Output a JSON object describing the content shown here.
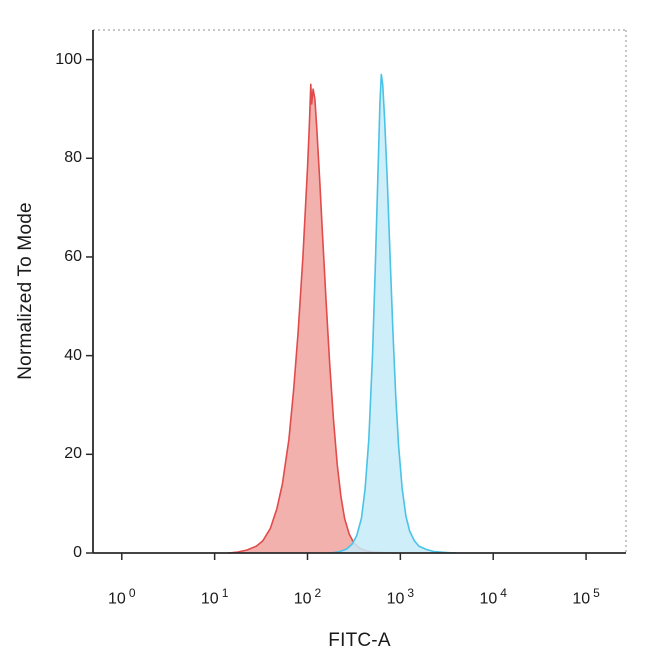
{
  "chart": {
    "xlabel": "FITC-A",
    "ylabel": "Normalized To Mode"
  },
  "chart_data": {
    "type": "area",
    "subtype": "flow-cytometry-histogram-overlay",
    "title": "",
    "xlabel": "FITC-A",
    "ylabel": "Normalized To Mode",
    "x_scale": "log10",
    "x_domain_log10": [
      -0.31,
      5.43
    ],
    "ylim": [
      0,
      100
    ],
    "y_domain": [
      0,
      106
    ],
    "grid": false,
    "legend": "none",
    "panel_border_style": "dashed-top-right",
    "panel_border_color": "#8f8f8f",
    "axis_color": "#2a2a2a",
    "x_ticks": [
      {
        "base": "10",
        "exp": "0",
        "log10": 0
      },
      {
        "base": "10",
        "exp": "1",
        "log10": 1
      },
      {
        "base": "10",
        "exp": "2",
        "log10": 2
      },
      {
        "base": "10",
        "exp": "3",
        "log10": 3
      },
      {
        "base": "10",
        "exp": "4",
        "log10": 4
      },
      {
        "base": "10",
        "exp": "5",
        "log10": 5
      }
    ],
    "y_ticks": [
      {
        "label": "0",
        "value": 0
      },
      {
        "label": "20",
        "value": 20
      },
      {
        "label": "40",
        "value": 40
      },
      {
        "label": "60",
        "value": 60
      },
      {
        "label": "80",
        "value": 80
      },
      {
        "label": "100",
        "value": 100
      }
    ],
    "series": [
      {
        "name": "red-population",
        "peak_log10_x": 2.04,
        "peak_y": 95,
        "stroke": "#e14b4b",
        "fill": "#ef9d99",
        "fill_opacity": 0.8,
        "stroke_width": 1.6,
        "points": [
          [
            1.15,
            0
          ],
          [
            1.25,
            0.2
          ],
          [
            1.35,
            0.6
          ],
          [
            1.45,
            1.4
          ],
          [
            1.52,
            2.5
          ],
          [
            1.6,
            5
          ],
          [
            1.67,
            9
          ],
          [
            1.73,
            14
          ],
          [
            1.8,
            23
          ],
          [
            1.85,
            33
          ],
          [
            1.9,
            45
          ],
          [
            1.95,
            60
          ],
          [
            2.0,
            78
          ],
          [
            2.02,
            87
          ],
          [
            2.035,
            95
          ],
          [
            2.045,
            91
          ],
          [
            2.06,
            94
          ],
          [
            2.08,
            92
          ],
          [
            2.1,
            86
          ],
          [
            2.13,
            76
          ],
          [
            2.16,
            65
          ],
          [
            2.2,
            51
          ],
          [
            2.24,
            38
          ],
          [
            2.28,
            27
          ],
          [
            2.32,
            18
          ],
          [
            2.36,
            11.5
          ],
          [
            2.4,
            7
          ],
          [
            2.45,
            3.8
          ],
          [
            2.5,
            2.0
          ],
          [
            2.56,
            1.0
          ],
          [
            2.62,
            0.5
          ],
          [
            2.7,
            0.2
          ],
          [
            2.8,
            0.1
          ],
          [
            2.95,
            0
          ]
        ]
      },
      {
        "name": "cyan-population",
        "peak_log10_x": 2.795,
        "peak_y": 97,
        "stroke": "#49c3e6",
        "fill": "#c5ebf8",
        "fill_opacity": 0.85,
        "stroke_width": 1.6,
        "points": [
          [
            2.25,
            0
          ],
          [
            2.35,
            0.3
          ],
          [
            2.42,
            0.8
          ],
          [
            2.48,
            1.8
          ],
          [
            2.53,
            3.5
          ],
          [
            2.58,
            7
          ],
          [
            2.62,
            13
          ],
          [
            2.66,
            23
          ],
          [
            2.7,
            40
          ],
          [
            2.73,
            58
          ],
          [
            2.76,
            78
          ],
          [
            2.78,
            91
          ],
          [
            2.795,
            97
          ],
          [
            2.81,
            95
          ],
          [
            2.83,
            88
          ],
          [
            2.86,
            75
          ],
          [
            2.89,
            60
          ],
          [
            2.92,
            45
          ],
          [
            2.95,
            32
          ],
          [
            2.98,
            22
          ],
          [
            3.02,
            13
          ],
          [
            3.06,
            7.5
          ],
          [
            3.1,
            4.5
          ],
          [
            3.15,
            2.5
          ],
          [
            3.2,
            1.4
          ],
          [
            3.28,
            0.7
          ],
          [
            3.36,
            0.3
          ],
          [
            3.5,
            0.1
          ],
          [
            3.6,
            0
          ]
        ]
      }
    ]
  }
}
